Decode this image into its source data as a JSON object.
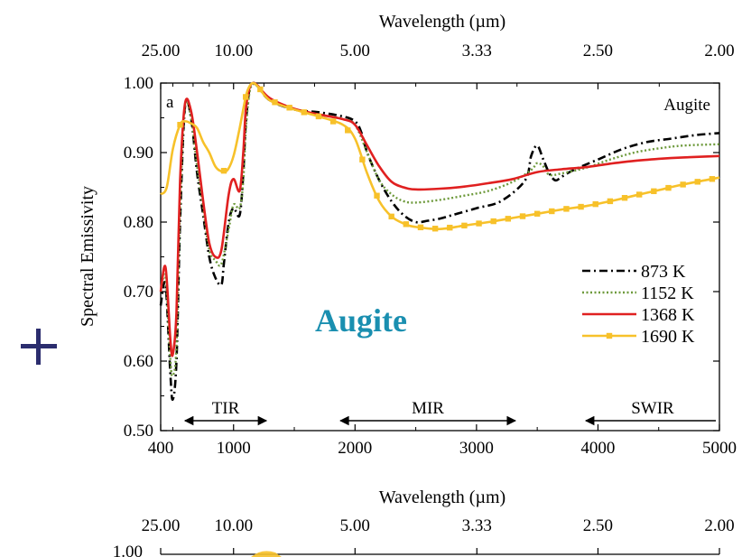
{
  "chart_data": {
    "type": "line",
    "panel_label": "a",
    "mineral_label": "Augite",
    "overlay_label": "Augite",
    "overlay_color": "#1a8fb0",
    "xlabel": "",
    "xlim": [
      400,
      5000
    ],
    "x_ticks": [
      "400",
      "1000",
      "2000",
      "3000",
      "4000",
      "5000"
    ],
    "ylabel": "Spectral Emissivity",
    "ylim": [
      0.5,
      1.0
    ],
    "y_ticks": [
      "0.50",
      "0.60",
      "0.70",
      "0.80",
      "0.90",
      "1.00"
    ],
    "top_axis": {
      "label": "Wavelength (µm)",
      "ticks": [
        "25.00",
        "10.00",
        "5.00",
        "3.33",
        "2.50",
        "2.00"
      ]
    },
    "regions": [
      {
        "label": "TIR",
        "from": 600,
        "to": 1270
      },
      {
        "label": "MIR",
        "from": 1880,
        "to": 3320
      },
      {
        "label": "SWIR",
        "from": 3900,
        "to": 5000
      }
    ],
    "legend_position": "bottom-right",
    "series": [
      {
        "name": "873 K",
        "color": "#000000",
        "style": "dashdot",
        "x": [
          400,
          440,
          480,
          500,
          530,
          560,
          600,
          650,
          700,
          750,
          800,
          850,
          900,
          920,
          960,
          1000,
          1050,
          1080,
          1100,
          1130,
          1160,
          1200,
          1300,
          1500,
          1700,
          1900,
          2000,
          2050,
          2100,
          2200,
          2300,
          2400,
          2500,
          2600,
          2700,
          2800,
          3000,
          3200,
          3400,
          3450,
          3500,
          3550,
          3600,
          3650,
          3700,
          3800,
          4000,
          4200,
          4400,
          4600,
          4800,
          5000
        ],
        "y": [
          0.68,
          0.71,
          0.58,
          0.545,
          0.6,
          0.8,
          0.965,
          0.95,
          0.87,
          0.81,
          0.75,
          0.72,
          0.71,
          0.74,
          0.8,
          0.82,
          0.81,
          0.87,
          0.94,
          0.99,
          1.0,
          0.995,
          0.975,
          0.962,
          0.958,
          0.952,
          0.945,
          0.93,
          0.9,
          0.86,
          0.83,
          0.81,
          0.8,
          0.802,
          0.805,
          0.81,
          0.82,
          0.83,
          0.86,
          0.895,
          0.91,
          0.89,
          0.87,
          0.86,
          0.865,
          0.875,
          0.89,
          0.905,
          0.915,
          0.92,
          0.925,
          0.928
        ]
      },
      {
        "name": "1152 K",
        "color": "#6e9a3c",
        "style": "dotted",
        "x": [
          400,
          440,
          480,
          500,
          530,
          560,
          600,
          650,
          700,
          750,
          800,
          850,
          900,
          960,
          1000,
          1050,
          1080,
          1100,
          1130,
          1160,
          1200,
          1300,
          1500,
          1700,
          1900,
          2000,
          2100,
          2200,
          2300,
          2400,
          2500,
          2700,
          2900,
          3100,
          3300,
          3450,
          3500,
          3550,
          3600,
          3700,
          3900,
          4100,
          4300,
          4500,
          4700,
          5000
        ],
        "y": [
          0.7,
          0.72,
          0.6,
          0.58,
          0.62,
          0.82,
          0.965,
          0.95,
          0.88,
          0.82,
          0.76,
          0.745,
          0.74,
          0.79,
          0.825,
          0.82,
          0.86,
          0.93,
          0.985,
          0.998,
          0.995,
          0.975,
          0.962,
          0.955,
          0.948,
          0.94,
          0.9,
          0.86,
          0.84,
          0.83,
          0.828,
          0.832,
          0.838,
          0.845,
          0.858,
          0.875,
          0.885,
          0.88,
          0.868,
          0.87,
          0.878,
          0.89,
          0.9,
          0.906,
          0.91,
          0.912
        ]
      },
      {
        "name": "1368 K",
        "color": "#e02020",
        "style": "solid",
        "x": [
          400,
          440,
          480,
          500,
          530,
          560,
          600,
          650,
          700,
          750,
          800,
          850,
          900,
          960,
          1000,
          1050,
          1080,
          1100,
          1130,
          1160,
          1200,
          1300,
          1500,
          1700,
          1900,
          2000,
          2100,
          2200,
          2300,
          2400,
          2500,
          2700,
          2900,
          3100,
          3300,
          3500,
          3700,
          3900,
          4100,
          4300,
          4500,
          4700,
          5000
        ],
        "y": [
          0.7,
          0.735,
          0.63,
          0.61,
          0.67,
          0.86,
          0.97,
          0.96,
          0.9,
          0.83,
          0.77,
          0.75,
          0.76,
          0.84,
          0.862,
          0.845,
          0.9,
          0.96,
          0.992,
          1.0,
          0.996,
          0.978,
          0.963,
          0.955,
          0.948,
          0.94,
          0.91,
          0.88,
          0.858,
          0.85,
          0.847,
          0.848,
          0.851,
          0.856,
          0.862,
          0.872,
          0.876,
          0.879,
          0.884,
          0.888,
          0.891,
          0.893,
          0.895
        ]
      },
      {
        "name": "1690 K",
        "color": "#f7c12a",
        "style": "solid-square",
        "x": [
          400,
          450,
          500,
          560,
          600,
          650,
          700,
          750,
          800,
          850,
          900,
          950,
          1000,
          1050,
          1100,
          1130,
          1160,
          1200,
          1300,
          1500,
          1700,
          1900,
          2000,
          2100,
          2200,
          2300,
          2400,
          2500,
          2700,
          2900,
          3100,
          3300,
          3500,
          3700,
          3900,
          4100,
          4300,
          4500,
          4700,
          5000
        ],
        "y": [
          0.84,
          0.85,
          0.905,
          0.94,
          0.945,
          0.942,
          0.935,
          0.915,
          0.9,
          0.88,
          0.873,
          0.875,
          0.895,
          0.935,
          0.98,
          0.995,
          1.0,
          0.995,
          0.975,
          0.962,
          0.952,
          0.94,
          0.92,
          0.87,
          0.83,
          0.808,
          0.798,
          0.793,
          0.79,
          0.795,
          0.8,
          0.806,
          0.812,
          0.818,
          0.823,
          0.83,
          0.838,
          0.846,
          0.854,
          0.864
        ]
      }
    ]
  },
  "next_panel": {
    "top_axis_label": "Wavelength (µm)",
    "top_ticks": [
      "25.00",
      "10.00",
      "5.00",
      "3.33",
      "2.50",
      "2.00"
    ],
    "first_y_tick": "1.00"
  }
}
